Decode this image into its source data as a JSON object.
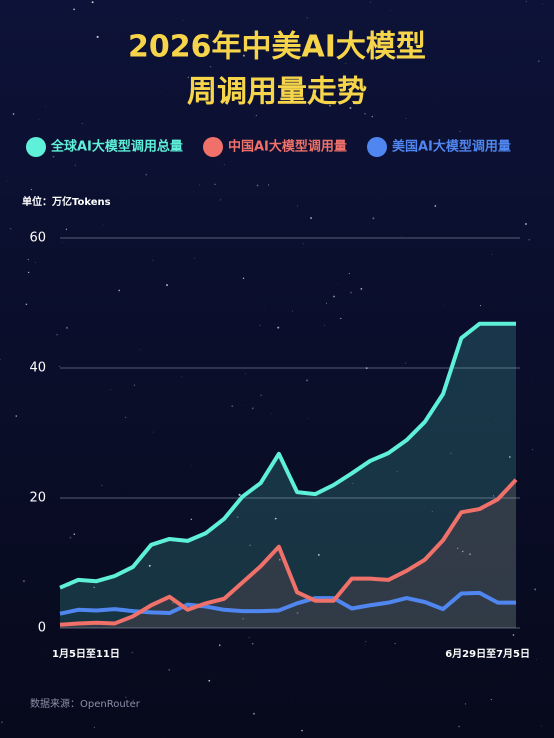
{
  "chart_data": {
    "type": "line",
    "title": [
      "2026年中美AI大模型",
      "周调用量走势"
    ],
    "unit_label": "单位：万亿Tokens",
    "source": "数据来源：OpenRouter",
    "categories": [
      "1月5日至11日",
      null,
      null,
      null,
      null,
      null,
      null,
      null,
      null,
      null,
      null,
      null,
      null,
      null,
      null,
      null,
      null,
      null,
      null,
      null,
      null,
      null,
      null,
      null,
      null,
      "6月29日至7月5日"
    ],
    "series": [
      {
        "name": "全球AI大模型调用总量",
        "color": "#5ef0d8",
        "values": [
          6.2,
          7.4,
          7.2,
          8,
          9.4,
          12.8,
          13.7,
          13.4,
          14.6,
          16.8,
          20.2,
          22.3,
          26.8,
          20.9,
          20.6,
          22,
          23.8,
          25.7,
          26.9,
          28.9,
          31.7,
          36,
          44.6,
          46.8,
          46.8,
          46.8
        ]
      },
      {
        "name": "中国AI大模型调用量",
        "color": "#f0706a",
        "values": [
          0.5,
          0.7,
          0.8,
          0.7,
          1.8,
          3.5,
          4.8,
          2.8,
          3.8,
          4.5,
          7.0,
          9.5,
          12.5,
          5.5,
          4.2,
          4.2,
          7.6,
          7.6,
          7.4,
          8.8,
          10.5,
          13.5,
          17.8,
          18.3,
          19.8,
          22.8
        ]
      },
      {
        "name": "美国AI大模型调用量",
        "color": "#4f86f0",
        "values": [
          2.2,
          2.8,
          2.7,
          2.9,
          2.6,
          2.4,
          2.3,
          3.6,
          3.3,
          2.8,
          2.6,
          2.6,
          2.7,
          3.8,
          4.6,
          4.6,
          3.0,
          3.5,
          3.9,
          4.6,
          4.0,
          2.9,
          5.3,
          5.4,
          3.9,
          3.9
        ]
      }
    ],
    "ylim": [
      0,
      60
    ],
    "yticks": [
      0,
      20,
      40,
      60
    ],
    "grid": true
  }
}
